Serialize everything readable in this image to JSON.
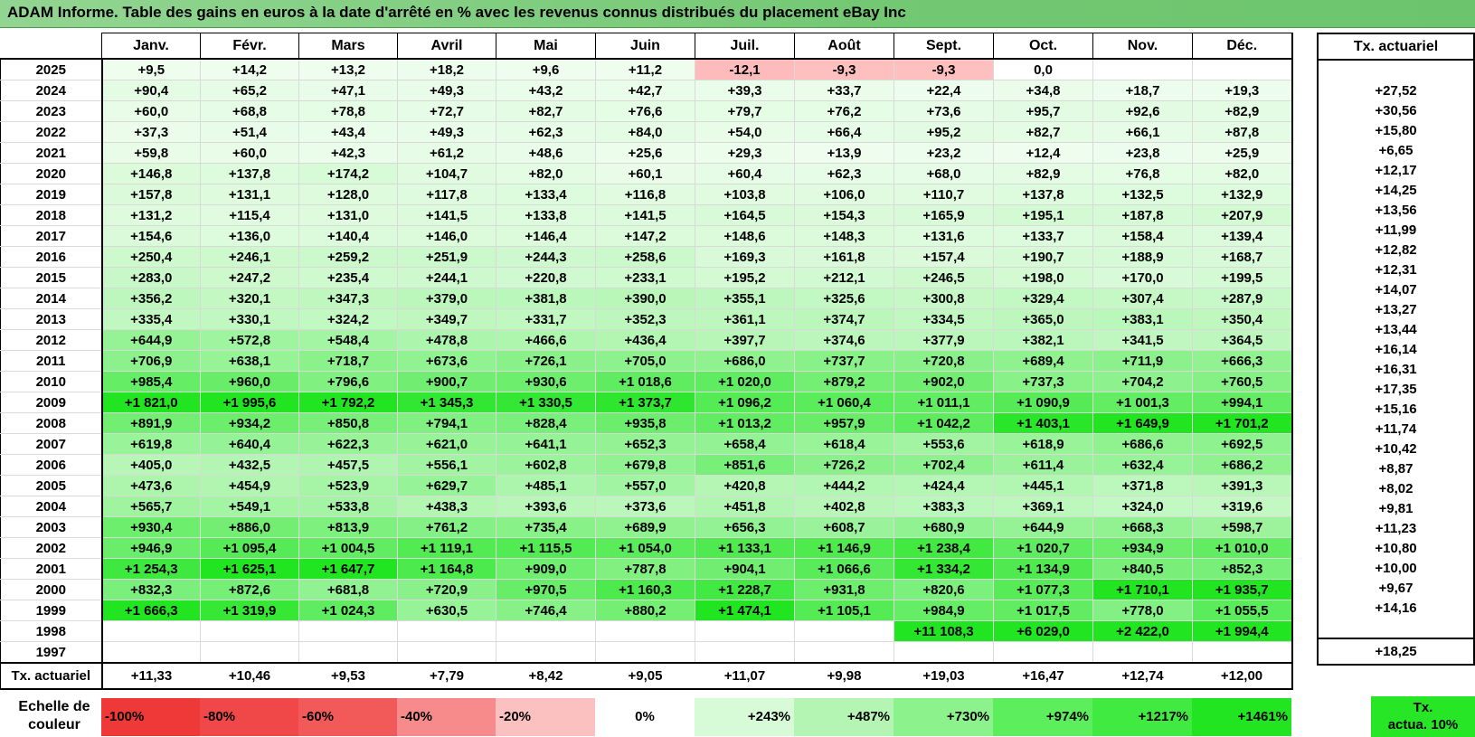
{
  "title": "ADAM Informe. Table des gains en euros à la date d'arrêté en % avec les revenus connus distribués du placement eBay Inc",
  "months": [
    "Janv.",
    "Févr.",
    "Mars",
    "Avril",
    "Mai",
    "Juin",
    "Juil.",
    "Août",
    "Sept.",
    "Oct.",
    "Nov.",
    "Déc."
  ],
  "tx_header": "Tx. actuariel",
  "footer_label": "Tx. actuariel",
  "rows": [
    {
      "year": "2025",
      "values": [
        "+9,5",
        "+14,2",
        "+13,2",
        "+18,2",
        "+9,6",
        "+11,2",
        "-12,1",
        "-9,3",
        "-9,3",
        "0,0",
        "",
        ""
      ],
      "tx": ""
    },
    {
      "year": "2024",
      "values": [
        "+90,4",
        "+65,2",
        "+47,1",
        "+49,3",
        "+43,2",
        "+42,7",
        "+39,3",
        "+33,7",
        "+22,4",
        "+34,8",
        "+18,7",
        "+19,3"
      ],
      "tx": "+27,52"
    },
    {
      "year": "2023",
      "values": [
        "+60,0",
        "+68,8",
        "+78,8",
        "+72,7",
        "+82,7",
        "+76,6",
        "+79,7",
        "+76,2",
        "+73,6",
        "+95,7",
        "+92,6",
        "+82,9"
      ],
      "tx": "+30,56"
    },
    {
      "year": "2022",
      "values": [
        "+37,3",
        "+51,4",
        "+43,4",
        "+49,3",
        "+62,3",
        "+84,0",
        "+54,0",
        "+66,4",
        "+95,2",
        "+82,7",
        "+66,1",
        "+87,8"
      ],
      "tx": "+15,80"
    },
    {
      "year": "2021",
      "values": [
        "+59,8",
        "+60,0",
        "+42,3",
        "+61,2",
        "+48,6",
        "+25,6",
        "+29,3",
        "+13,9",
        "+23,2",
        "+12,4",
        "+23,8",
        "+25,9"
      ],
      "tx": "+6,65"
    },
    {
      "year": "2020",
      "values": [
        "+146,8",
        "+137,8",
        "+174,2",
        "+104,7",
        "+82,0",
        "+60,1",
        "+60,4",
        "+62,3",
        "+68,0",
        "+82,9",
        "+76,8",
        "+82,0"
      ],
      "tx": "+12,17"
    },
    {
      "year": "2019",
      "values": [
        "+157,8",
        "+131,1",
        "+128,0",
        "+117,8",
        "+133,4",
        "+116,8",
        "+103,8",
        "+106,0",
        "+110,7",
        "+137,8",
        "+132,5",
        "+132,9"
      ],
      "tx": "+14,25"
    },
    {
      "year": "2018",
      "values": [
        "+131,2",
        "+115,4",
        "+131,0",
        "+141,5",
        "+133,8",
        "+141,5",
        "+164,5",
        "+154,3",
        "+165,9",
        "+195,1",
        "+187,8",
        "+207,9"
      ],
      "tx": "+13,56"
    },
    {
      "year": "2017",
      "values": [
        "+154,6",
        "+136,0",
        "+140,4",
        "+146,0",
        "+146,4",
        "+147,2",
        "+148,6",
        "+148,3",
        "+131,6",
        "+133,7",
        "+158,4",
        "+139,4"
      ],
      "tx": "+11,99"
    },
    {
      "year": "2016",
      "values": [
        "+250,4",
        "+246,1",
        "+259,2",
        "+251,9",
        "+244,3",
        "+258,6",
        "+169,3",
        "+161,8",
        "+157,4",
        "+190,7",
        "+188,9",
        "+168,7"
      ],
      "tx": "+12,82"
    },
    {
      "year": "2015",
      "values": [
        "+283,0",
        "+247,2",
        "+235,4",
        "+244,1",
        "+220,8",
        "+233,1",
        "+195,2",
        "+212,1",
        "+246,5",
        "+198,0",
        "+170,0",
        "+199,5"
      ],
      "tx": "+12,31"
    },
    {
      "year": "2014",
      "values": [
        "+356,2",
        "+320,1",
        "+347,3",
        "+379,0",
        "+381,8",
        "+390,0",
        "+355,1",
        "+325,6",
        "+300,8",
        "+329,4",
        "+307,4",
        "+287,9"
      ],
      "tx": "+14,07"
    },
    {
      "year": "2013",
      "values": [
        "+335,4",
        "+330,1",
        "+324,2",
        "+349,7",
        "+331,7",
        "+352,3",
        "+361,1",
        "+374,7",
        "+334,5",
        "+365,0",
        "+383,1",
        "+350,4"
      ],
      "tx": "+13,27"
    },
    {
      "year": "2012",
      "values": [
        "+644,9",
        "+572,8",
        "+548,4",
        "+478,8",
        "+466,6",
        "+436,4",
        "+397,7",
        "+374,6",
        "+377,9",
        "+382,1",
        "+341,5",
        "+364,5"
      ],
      "tx": "+13,44"
    },
    {
      "year": "2011",
      "values": [
        "+706,9",
        "+638,1",
        "+718,7",
        "+673,6",
        "+726,1",
        "+705,0",
        "+686,0",
        "+737,7",
        "+720,8",
        "+689,4",
        "+711,9",
        "+666,3"
      ],
      "tx": "+16,14"
    },
    {
      "year": "2010",
      "values": [
        "+985,4",
        "+960,0",
        "+796,6",
        "+900,7",
        "+930,6",
        "+1 018,6",
        "+1 020,0",
        "+879,2",
        "+902,0",
        "+737,3",
        "+704,2",
        "+760,5"
      ],
      "tx": "+16,31"
    },
    {
      "year": "2009",
      "values": [
        "+1 821,0",
        "+1 995,6",
        "+1 792,2",
        "+1 345,3",
        "+1 330,5",
        "+1 373,7",
        "+1 096,2",
        "+1 060,4",
        "+1 011,1",
        "+1 090,9",
        "+1 001,3",
        "+994,1"
      ],
      "tx": "+17,35"
    },
    {
      "year": "2008",
      "values": [
        "+891,9",
        "+934,2",
        "+850,8",
        "+794,1",
        "+828,4",
        "+935,8",
        "+1 013,2",
        "+957,9",
        "+1 042,2",
        "+1 403,1",
        "+1 649,9",
        "+1 701,2"
      ],
      "tx": "+15,16"
    },
    {
      "year": "2007",
      "values": [
        "+619,8",
        "+640,4",
        "+622,3",
        "+621,0",
        "+641,1",
        "+652,3",
        "+658,4",
        "+618,4",
        "+553,6",
        "+618,9",
        "+686,6",
        "+692,5"
      ],
      "tx": "+11,74"
    },
    {
      "year": "2006",
      "values": [
        "+405,0",
        "+432,5",
        "+457,5",
        "+556,1",
        "+602,8",
        "+679,8",
        "+851,6",
        "+726,2",
        "+702,4",
        "+611,4",
        "+632,4",
        "+686,2"
      ],
      "tx": "+10,42"
    },
    {
      "year": "2005",
      "values": [
        "+473,6",
        "+454,9",
        "+523,9",
        "+629,7",
        "+485,1",
        "+557,0",
        "+420,8",
        "+444,2",
        "+424,4",
        "+445,1",
        "+371,8",
        "+391,3"
      ],
      "tx": "+8,87"
    },
    {
      "year": "2004",
      "values": [
        "+565,7",
        "+549,1",
        "+533,8",
        "+438,3",
        "+393,6",
        "+373,6",
        "+451,8",
        "+402,8",
        "+383,3",
        "+369,1",
        "+324,0",
        "+319,6"
      ],
      "tx": "+8,02"
    },
    {
      "year": "2003",
      "values": [
        "+930,4",
        "+886,0",
        "+813,9",
        "+761,2",
        "+735,4",
        "+689,9",
        "+656,3",
        "+608,7",
        "+680,9",
        "+644,9",
        "+668,3",
        "+598,7"
      ],
      "tx": "+9,81"
    },
    {
      "year": "2002",
      "values": [
        "+946,9",
        "+1 095,4",
        "+1 004,5",
        "+1 119,1",
        "+1 115,5",
        "+1 054,0",
        "+1 133,1",
        "+1 146,9",
        "+1 238,4",
        "+1 020,7",
        "+934,9",
        "+1 010,0"
      ],
      "tx": "+11,23"
    },
    {
      "year": "2001",
      "values": [
        "+1 254,3",
        "+1 625,1",
        "+1 647,7",
        "+1 164,8",
        "+909,0",
        "+787,8",
        "+904,1",
        "+1 066,6",
        "+1 334,2",
        "+1 134,9",
        "+840,5",
        "+852,3"
      ],
      "tx": "+10,80"
    },
    {
      "year": "2000",
      "values": [
        "+832,3",
        "+872,6",
        "+681,8",
        "+720,9",
        "+970,5",
        "+1 160,3",
        "+1 228,7",
        "+931,8",
        "+820,6",
        "+1 077,3",
        "+1 710,1",
        "+1 935,7"
      ],
      "tx": "+10,00"
    },
    {
      "year": "1999",
      "values": [
        "+1 666,3",
        "+1 319,9",
        "+1 024,3",
        "+630,5",
        "+746,4",
        "+880,2",
        "+1 474,1",
        "+1 105,1",
        "+984,9",
        "+1 017,5",
        "+778,0",
        "+1 055,5"
      ],
      "tx": "+9,67"
    },
    {
      "year": "1998",
      "values": [
        "",
        "",
        "",
        "",
        "",
        "",
        "",
        "",
        "+11 108,3",
        "+6 029,0",
        "+2 422,0",
        "+1 994,4"
      ],
      "tx": "+14,16"
    },
    {
      "year": "1997",
      "values": [
        "",
        "",
        "",
        "",
        "",
        "",
        "",
        "",
        "",
        "",
        "",
        ""
      ],
      "tx": ""
    }
  ],
  "footer_values": [
    "+11,33",
    "+10,46",
    "+9,53",
    "+7,79",
    "+8,42",
    "+9,05",
    "+11,07",
    "+9,98",
    "+19,03",
    "+16,47",
    "+12,74",
    "+12,00"
  ],
  "footer_tx": "+18,25",
  "legend_label_1": "Echelle de",
  "legend_label_2": "couleur",
  "legend": [
    {
      "label": "-100%",
      "color": "#ef3838",
      "align": "l"
    },
    {
      "label": "-80%",
      "color": "#f04848",
      "align": "l"
    },
    {
      "label": "-60%",
      "color": "#f25a5a",
      "align": "l"
    },
    {
      "label": "-40%",
      "color": "#f78a8a",
      "align": "l"
    },
    {
      "label": "-20%",
      "color": "#fbc0c0",
      "align": "l"
    },
    {
      "label": "0%",
      "color": "#ffffff",
      "align": "c"
    },
    {
      "label": "+243%",
      "color": "#d6fbd6",
      "align": "r"
    },
    {
      "label": "+487%",
      "color": "#b4f5b4",
      "align": "r"
    },
    {
      "label": "+730%",
      "color": "#8cf38c",
      "align": "r"
    },
    {
      "label": "+974%",
      "color": "#5cee5c",
      "align": "r"
    },
    {
      "label": "+1217%",
      "color": "#40ea40",
      "align": "r"
    },
    {
      "label": "+1461%",
      "color": "#22e522",
      "align": "r"
    }
  ],
  "tx_legend_1": "Tx.",
  "tx_legend_2": "actua. 10%"
}
